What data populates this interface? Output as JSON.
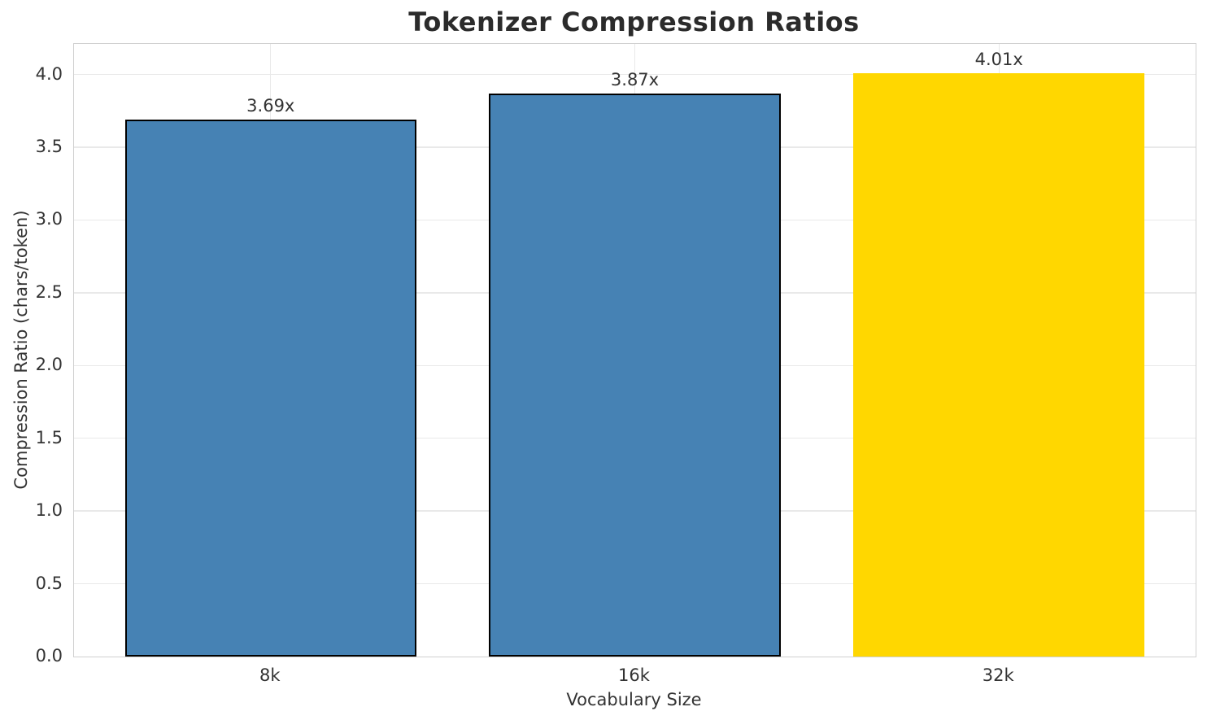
{
  "chart_data": {
    "type": "bar",
    "title": "Tokenizer Compression Ratios",
    "xlabel": "Vocabulary Size",
    "ylabel": "Compression Ratio (chars/token)",
    "categories": [
      "8k",
      "16k",
      "32k"
    ],
    "values": [
      3.69,
      3.87,
      4.01
    ],
    "bar_value_labels": [
      "3.69x",
      "3.87x",
      "4.01x"
    ],
    "bar_colors": [
      "#4682B4",
      "#4682B4",
      "#FFD700"
    ],
    "bar_edge_colors": [
      "#000000",
      "#000000",
      "#FFD700"
    ],
    "ylim": [
      0,
      4.21
    ],
    "yticks": [
      "0.0",
      "0.5",
      "1.0",
      "1.5",
      "2.0",
      "2.5",
      "3.0",
      "3.5",
      "4.0"
    ],
    "grid": true,
    "legend_position": "none",
    "bar_width_fraction": 0.8,
    "x_margin_fraction": 0.14
  },
  "style": {
    "title_color": "#2b2b2b",
    "text_color": "#333333",
    "grid_color": "#e9e9e9",
    "spine_color": "#d0d0d0",
    "background_color": "#ffffff",
    "blue_bar_color": "#4682B4",
    "highlight_bar_color": "#FFD700"
  }
}
